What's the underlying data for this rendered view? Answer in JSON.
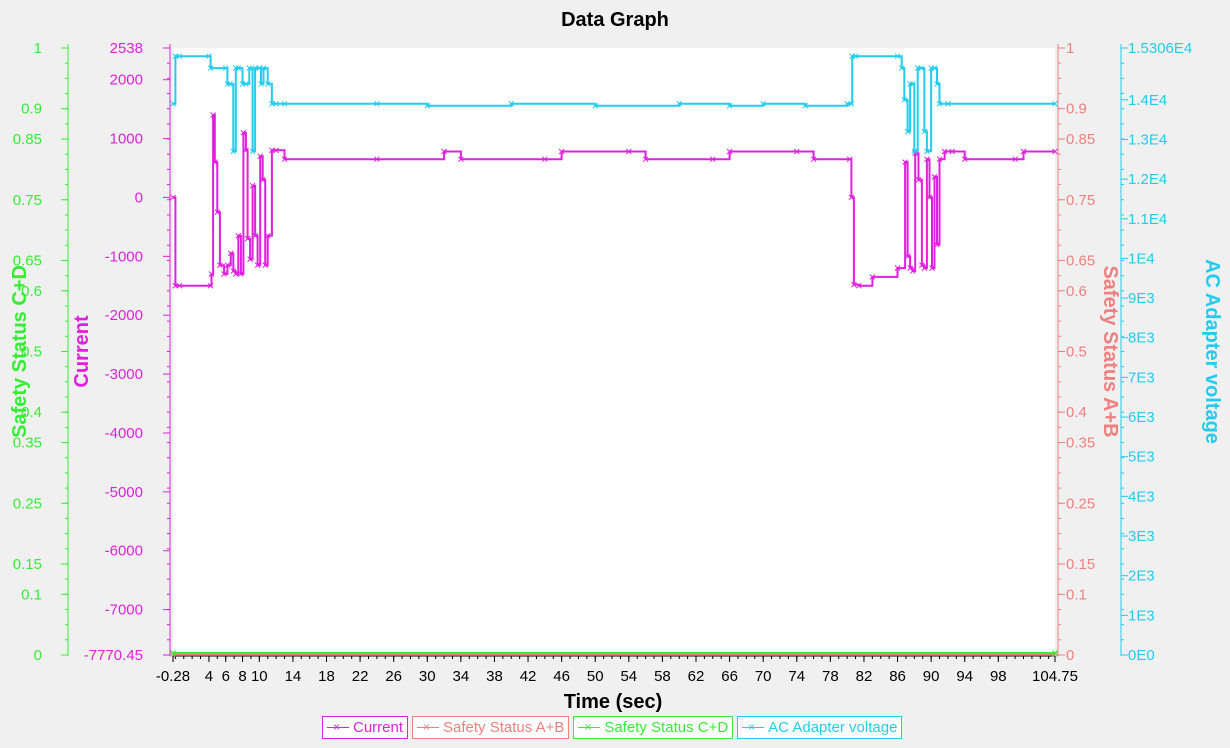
{
  "chart_data": {
    "type": "line",
    "title": "Data Graph",
    "xlabel": "Time (sec)",
    "x_range": [
      -0.28,
      104.75
    ],
    "x_ticks": [
      "-0.28",
      "4",
      "6",
      "10",
      "14",
      "18",
      "22",
      "26",
      "30",
      "34",
      "38",
      "42",
      "46",
      "50",
      "54",
      "58",
      "62",
      "66",
      "70",
      "74",
      "78",
      "82",
      "86",
      "90",
      "94",
      "98",
      "104.75"
    ],
    "x_tick_values": [
      -0.28,
      4,
      6,
      10,
      14,
      18,
      22,
      26,
      30,
      34,
      38,
      42,
      46,
      50,
      54,
      58,
      62,
      66,
      70,
      74,
      78,
      82,
      86,
      90,
      94,
      98,
      104.75
    ],
    "extra_x_tick_labels": [
      "8"
    ],
    "extra_x_tick_values": [
      8
    ],
    "axes": {
      "current": {
        "label": "Current",
        "color": "#e020e0",
        "range": [
          -7770.45,
          2538
        ],
        "ticks": [
          "2538",
          "2000",
          "1000",
          "0",
          "-1000",
          "-2000",
          "-3000",
          "-4000",
          "-5000",
          "-6000",
          "-7000",
          "-7770.45"
        ],
        "tick_values": [
          2538,
          2000,
          1000,
          0,
          -1000,
          -2000,
          -3000,
          -4000,
          -5000,
          -6000,
          -7000,
          -7770.45
        ]
      },
      "safety_cd": {
        "label": "Safety Status C+D",
        "color": "#33ee33",
        "range": [
          0,
          1
        ],
        "ticks": [
          "1",
          "0.9",
          "0.85",
          "0.75",
          "0.65",
          "0.6",
          "0.5",
          "0.4",
          "0.35",
          "0.25",
          "0.15",
          "0.1",
          "0"
        ],
        "tick_values": [
          1,
          0.9,
          0.85,
          0.75,
          0.65,
          0.6,
          0.5,
          0.4,
          0.35,
          0.25,
          0.15,
          0.1,
          0
        ]
      },
      "safety_ab": {
        "label": "Safety Status A+B",
        "color": "#f08080",
        "range": [
          0,
          1
        ],
        "ticks": [
          "1",
          "0.9",
          "0.85",
          "0.75",
          "0.65",
          "0.6",
          "0.5",
          "0.4",
          "0.35",
          "0.25",
          "0.15",
          "0.1",
          "0"
        ],
        "tick_values": [
          1,
          0.9,
          0.85,
          0.75,
          0.65,
          0.6,
          0.5,
          0.4,
          0.35,
          0.25,
          0.15,
          0.1,
          0
        ]
      },
      "ac_voltage": {
        "label": "AC Adapter voltage",
        "color": "#22ccee",
        "range": [
          0,
          15306
        ],
        "ticks": [
          "1.5306E4",
          "1.4E4",
          "1.3E4",
          "1.2E4",
          "1.1E4",
          "1E4",
          "9E3",
          "8E3",
          "7E3",
          "6E3",
          "5E3",
          "4E3",
          "3E3",
          "2E3",
          "1E3",
          "0E0"
        ],
        "tick_values": [
          15306,
          14000,
          13000,
          12000,
          11000,
          10000,
          9000,
          8000,
          7000,
          6000,
          5000,
          4000,
          3000,
          2000,
          1000,
          0
        ]
      }
    },
    "series": [
      {
        "name": "Current",
        "axis": "current",
        "color": "#e020e0",
        "x": [
          -0.28,
          0,
          0.5,
          4.2,
          4.3,
          4.5,
          4.7,
          5,
          5.3,
          5.8,
          6.2,
          6.6,
          6.9,
          7.2,
          7.5,
          7.8,
          8.1,
          8.4,
          8.6,
          8.9,
          9.2,
          9.5,
          9.8,
          10.1,
          10.4,
          10.7,
          11,
          11.5,
          12,
          13,
          24,
          32,
          34,
          44,
          46,
          54,
          56,
          64,
          66,
          74,
          76,
          80.3,
          80.5,
          80.8,
          81.4,
          83,
          86,
          86.9,
          87.2,
          87.5,
          87.8,
          88.1,
          88.5,
          88.9,
          89.2,
          89.5,
          89.8,
          90.1,
          90.4,
          90.7,
          91,
          91.6,
          92.5,
          94,
          100,
          101,
          104.75
        ],
        "y": [
          0,
          -1500,
          -1500,
          -1500,
          -1300,
          1400,
          600,
          -250,
          -1150,
          -1300,
          -1150,
          -950,
          -1250,
          -1300,
          -650,
          -1300,
          1100,
          800,
          -700,
          -1050,
          200,
          -650,
          -1150,
          700,
          300,
          -1150,
          -650,
          800,
          800,
          650,
          650,
          780,
          650,
          650,
          780,
          780,
          650,
          650,
          780,
          780,
          650,
          650,
          0,
          -1480,
          -1500,
          -1350,
          -1200,
          600,
          -1000,
          -1200,
          -1250,
          750,
          300,
          -1150,
          -1200,
          650,
          0,
          -1200,
          350,
          -800,
          650,
          780,
          780,
          650,
          650,
          780,
          780
        ]
      },
      {
        "name": "Safety Status A+B",
        "axis": "safety_ab",
        "color": "#f08080",
        "x": [
          -0.28,
          104.75
        ],
        "y": [
          0,
          0
        ]
      },
      {
        "name": "Safety Status C+D",
        "axis": "safety_cd",
        "color": "#33ee33",
        "x": [
          -0.28,
          104.75
        ],
        "y": [
          0,
          0
        ]
      },
      {
        "name": "AC Adapter voltage",
        "axis": "ac_voltage",
        "color": "#22ccee",
        "x": [
          -0.28,
          0,
          0.5,
          4,
          4.2,
          6,
          6.2,
          6.5,
          6.9,
          7.2,
          7.5,
          8,
          8.4,
          8.8,
          9.2,
          9.5,
          10,
          10.2,
          10.5,
          11,
          11.5,
          12,
          13,
          24,
          30,
          40,
          50,
          60,
          66,
          70,
          75,
          80,
          80.5,
          80.6,
          81,
          86,
          86.5,
          86.8,
          87.2,
          87.5,
          87.8,
          88,
          88.4,
          88.8,
          89.2,
          89.5,
          90,
          90.4,
          90.7,
          91,
          92,
          104.75
        ],
        "y": [
          13900,
          15100,
          15100,
          15100,
          14800,
          14800,
          14400,
          14400,
          12700,
          14800,
          14800,
          14400,
          14400,
          14800,
          12700,
          14800,
          14800,
          14400,
          14800,
          14400,
          13900,
          13900,
          13900,
          13900,
          13850,
          13900,
          13850,
          13900,
          13850,
          13900,
          13850,
          13900,
          13900,
          15100,
          15100,
          15100,
          14800,
          14000,
          13200,
          14400,
          14400,
          12700,
          14800,
          14800,
          13200,
          12700,
          14800,
          14800,
          14400,
          13900,
          13900,
          13900
        ]
      }
    ]
  }
}
